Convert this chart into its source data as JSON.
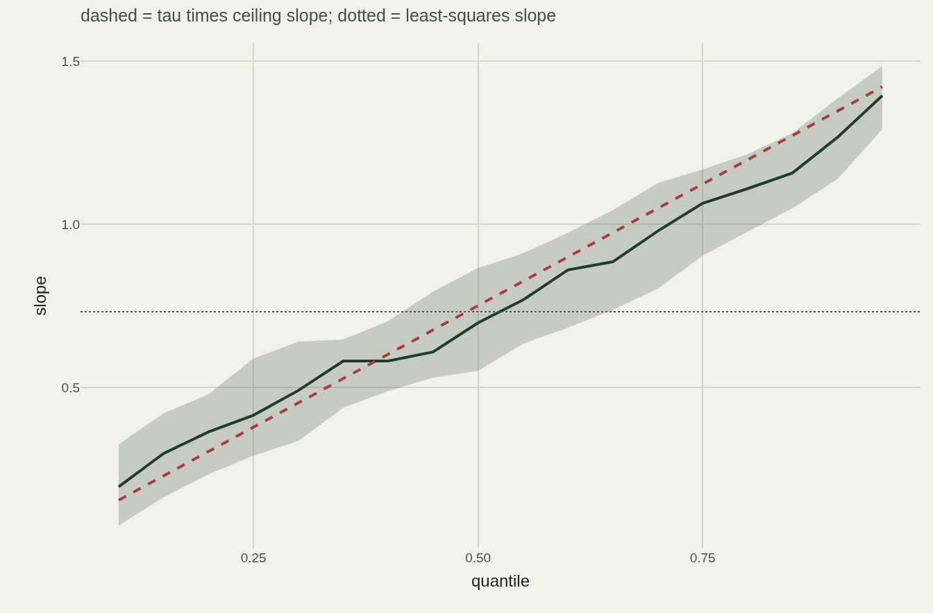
{
  "chart_data": {
    "type": "line",
    "title": "dashed = tau times ceiling slope; dotted = least-squares slope",
    "xlabel": "quantile",
    "ylabel": "slope",
    "x": [
      0.1,
      0.15,
      0.2,
      0.25,
      0.3,
      0.35,
      0.4,
      0.45,
      0.5,
      0.55,
      0.6,
      0.65,
      0.7,
      0.75,
      0.8,
      0.85,
      0.9,
      0.95
    ],
    "xlim": [
      0.0575,
      0.9925
    ],
    "xticks": [
      {
        "value": 0.25,
        "label": "0.25"
      },
      {
        "value": 0.5,
        "label": "0.50"
      },
      {
        "value": 0.75,
        "label": "0.75"
      }
    ],
    "ylim": [
      0.007,
      1.555
    ],
    "yticks": [
      {
        "value": 0.5,
        "label": "0.5"
      },
      {
        "value": 1,
        "label": "1.0"
      },
      {
        "value": 1.5,
        "label": "1.5"
      }
    ],
    "grid": true,
    "series": [
      {
        "color": "#1f3d28",
        "line_style": "solid",
        "values": [
          0.196,
          0.298,
          0.364,
          0.415,
          0.491,
          0.581,
          0.581,
          0.609,
          0.698,
          0.768,
          0.86,
          0.885,
          0.979,
          1.064,
          1.109,
          1.157,
          1.266,
          1.394
        ],
        "lower": [
          0.077,
          0.164,
          0.234,
          0.291,
          0.336,
          0.438,
          0.489,
          0.53,
          0.551,
          0.634,
          0.683,
          0.738,
          0.802,
          0.904,
          0.977,
          1.049,
          1.138,
          1.291
        ],
        "upper": [
          0.326,
          0.421,
          0.479,
          0.589,
          0.64,
          0.647,
          0.704,
          0.794,
          0.866,
          0.911,
          0.974,
          1.043,
          1.126,
          1.168,
          1.215,
          1.279,
          1.385,
          1.485
        ]
      },
      {
        "type": "line",
        "color": "#a83c3f",
        "line_style": "dashed",
        "x": [
          0.1,
          0.95
        ],
        "values": [
          0.155,
          1.421
        ]
      }
    ],
    "ref_lines": [
      {
        "axis": "y",
        "value": 0.732,
        "color": "#555555",
        "line_style": "dotted"
      }
    ]
  }
}
